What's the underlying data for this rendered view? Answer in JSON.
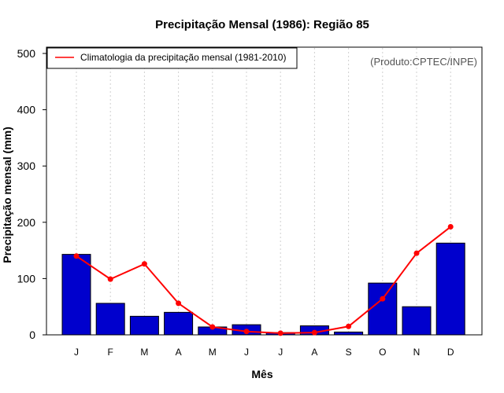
{
  "chart_data": {
    "type": "bar",
    "title": "Precipitação Mensal (1986): Região 85",
    "xlabel": "Mês",
    "ylabel": "Precipitação mensal (mm)",
    "ylim": [
      0,
      500
    ],
    "yticks": [
      0,
      100,
      200,
      300,
      400,
      500
    ],
    "categories": [
      "J",
      "F",
      "M",
      "A",
      "M",
      "J",
      "J",
      "A",
      "S",
      "O",
      "N",
      "D"
    ],
    "series": [
      {
        "name": "Precipitação mensal (1986)",
        "type": "bar",
        "color": "#0000CD",
        "values": [
          143,
          56,
          33,
          40,
          14,
          18,
          4,
          16,
          5,
          92,
          50,
          163
        ]
      },
      {
        "name": "Climatologia da precipitação mensal (1981-2010)",
        "type": "line",
        "color": "#FF0000",
        "values": [
          140,
          99,
          126,
          56,
          14,
          6,
          3,
          4,
          15,
          64,
          145,
          192
        ]
      }
    ],
    "legend": {
      "position": "top-left",
      "label": "Climatologia da precipitação mensal (1981-2010)"
    },
    "credit": "(Produto:CPTEC/INPE)",
    "grid": "vertical-dotted"
  }
}
